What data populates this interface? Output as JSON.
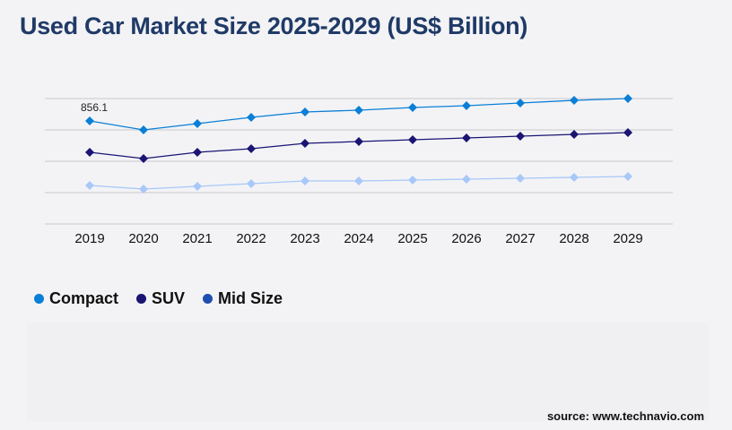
{
  "title": "Used Car Market Size 2025-2029 (US$ Billion)",
  "source": "source: www.technavio.com",
  "chart_data": {
    "type": "line",
    "title": "Used Car Market Size 2025-2029 (US$ Billion)",
    "x": [
      "2019",
      "2020",
      "2021",
      "2022",
      "2023",
      "2024",
      "2025",
      "2026",
      "2027",
      "2028",
      "2029"
    ],
    "ylim": [
      0,
      1042
    ],
    "grid": true,
    "legend_placement": "bottom-left",
    "series": [
      {
        "name": "Compact",
        "color": "#0a7fd6",
        "legend_color": "#0a7fd6",
        "values": [
          856.1,
          781.6,
          833.7,
          885.8,
          930.5,
          945.4,
          967.7,
          982.6,
          1004.9,
          1027.2,
          1042.1
        ]
      },
      {
        "name": "SUV",
        "color": "#1a1473",
        "legend_color": "#1a1473",
        "values": [
          595.5,
          543.4,
          595.5,
          625.3,
          669.9,
          684.8,
          699.7,
          714.6,
          729.5,
          744.4,
          759.3
        ]
      },
      {
        "name": "Mid Size",
        "color": "#a8c8f8",
        "legend_color": "#1f4fb0",
        "values": [
          320.1,
          290.3,
          312.6,
          334.9,
          357.3,
          357.3,
          364.7,
          372.2,
          379.6,
          387.0,
          394.5
        ]
      }
    ],
    "annotations": [
      {
        "series": "Compact",
        "x": "2019",
        "label": "856.1"
      }
    ]
  }
}
